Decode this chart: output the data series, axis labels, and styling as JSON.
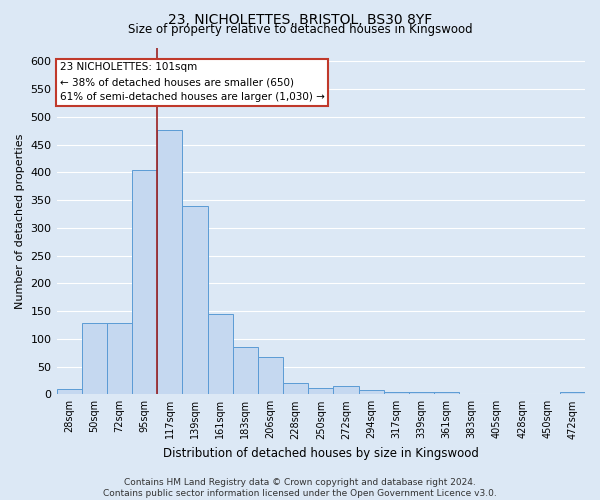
{
  "title": "23, NICHOLETTES, BRISTOL, BS30 8YF",
  "subtitle": "Size of property relative to detached houses in Kingswood",
  "xlabel": "Distribution of detached houses by size in Kingswood",
  "ylabel": "Number of detached properties",
  "categories": [
    "28sqm",
    "50sqm",
    "72sqm",
    "95sqm",
    "117sqm",
    "139sqm",
    "161sqm",
    "183sqm",
    "206sqm",
    "228sqm",
    "250sqm",
    "272sqm",
    "294sqm",
    "317sqm",
    "339sqm",
    "361sqm",
    "383sqm",
    "405sqm",
    "428sqm",
    "450sqm",
    "472sqm"
  ],
  "values": [
    10,
    128,
    128,
    405,
    477,
    340,
    145,
    85,
    68,
    20,
    12,
    15,
    8,
    5,
    5,
    5,
    0,
    0,
    0,
    0,
    5
  ],
  "bar_color": "#c5d8f0",
  "bar_edge_color": "#5b9bd5",
  "vline_color": "#9b2020",
  "annotation_text": "23 NICHOLETTES: 101sqm\n← 38% of detached houses are smaller (650)\n61% of semi-detached houses are larger (1,030) →",
  "annotation_box_color": "#ffffff",
  "annotation_box_edge": "#c0392b",
  "background_color": "#dce8f5",
  "plot_bg_color": "#dce8f5",
  "grid_color": "#ffffff",
  "footer_text": "Contains HM Land Registry data © Crown copyright and database right 2024.\nContains public sector information licensed under the Open Government Licence v3.0.",
  "ylim": [
    0,
    625
  ],
  "yticks": [
    0,
    50,
    100,
    150,
    200,
    250,
    300,
    350,
    400,
    450,
    500,
    550,
    600
  ]
}
